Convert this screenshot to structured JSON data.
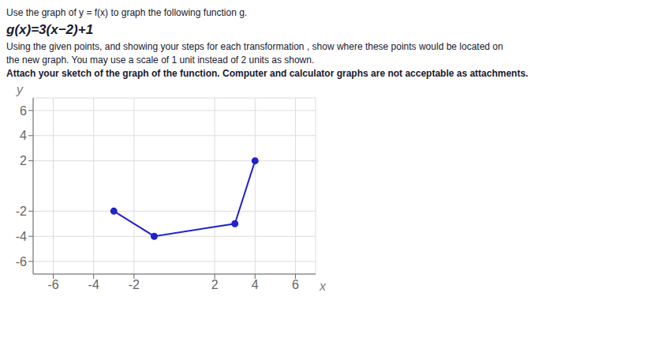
{
  "chart_data": {
    "type": "line",
    "title": "Use the graph of y = f(x) to graph the following function g.",
    "subtitle": "g(x)=3(x−2)+1",
    "annotations": [
      "Using the given points, and showing your steps for each transformation , show where these points would be located on",
      "the new graph. You may use a scale of 1 unit instead of 2 units as shown.",
      "Attach your sketch of the graph of the function. Computer and calculator graphs are not acceptable as attachments."
    ],
    "x_label": "x",
    "y_label": "y",
    "x": [
      -3,
      -1,
      3,
      4
    ],
    "values": [
      -2,
      -4,
      -3,
      2
    ],
    "color": "#2222cc",
    "marker": "circle",
    "xlim": [
      -7,
      7
    ],
    "ylim": [
      -7,
      7
    ],
    "xticks": [
      -6,
      -4,
      -2,
      2,
      4,
      6
    ],
    "yticks": [
      -6,
      -4,
      -2,
      2,
      4,
      6
    ],
    "grid": true
  }
}
